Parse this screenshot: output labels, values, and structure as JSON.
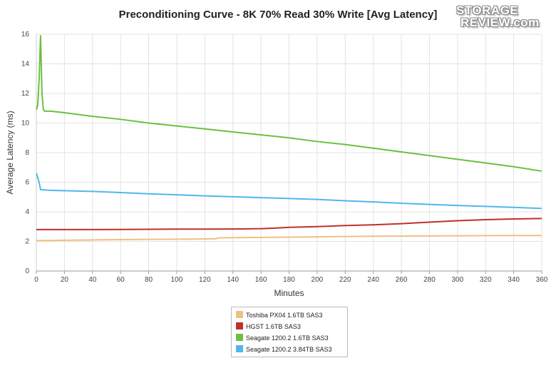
{
  "logo": {
    "line1": "STORAGE",
    "line2": "REVIEW.com"
  },
  "chart_data": {
    "type": "line",
    "title": "Preconditioning Curve - 8K 70% Read 30% Write [Avg Latency]",
    "xlabel": "Minutes",
    "ylabel": "Average Latency (ms)",
    "xlim": [
      0,
      360
    ],
    "ylim": [
      0,
      16
    ],
    "xticks": [
      "0",
      "20",
      "40",
      "60",
      "80",
      "100",
      "120",
      "140",
      "160",
      "180",
      "200",
      "220",
      "240",
      "260",
      "280",
      "300",
      "320",
      "340",
      "360"
    ],
    "yticks": [
      "0",
      "2",
      "4",
      "6",
      "8",
      "10",
      "12",
      "14",
      "16"
    ],
    "grid": true,
    "legend_position": "bottom",
    "series": [
      {
        "name": "Toshiba PX04 1.6TB SAS3",
        "color": "#f0c080",
        "points": [
          [
            0,
            2.05
          ],
          [
            20,
            2.08
          ],
          [
            40,
            2.1
          ],
          [
            60,
            2.12
          ],
          [
            80,
            2.14
          ],
          [
            100,
            2.15
          ],
          [
            120,
            2.17
          ],
          [
            128,
            2.18
          ],
          [
            130,
            2.24
          ],
          [
            140,
            2.25
          ],
          [
            160,
            2.27
          ],
          [
            180,
            2.29
          ],
          [
            200,
            2.31
          ],
          [
            220,
            2.33
          ],
          [
            240,
            2.35
          ],
          [
            260,
            2.36
          ],
          [
            280,
            2.37
          ],
          [
            300,
            2.38
          ],
          [
            320,
            2.39
          ],
          [
            340,
            2.4
          ],
          [
            360,
            2.4
          ]
        ]
      },
      {
        "name": "HGST 1.6TB SAS3",
        "color": "#c0302a",
        "points": [
          [
            0,
            2.8
          ],
          [
            20,
            2.8
          ],
          [
            40,
            2.8
          ],
          [
            60,
            2.81
          ],
          [
            80,
            2.82
          ],
          [
            100,
            2.83
          ],
          [
            120,
            2.83
          ],
          [
            140,
            2.84
          ],
          [
            160,
            2.86
          ],
          [
            170,
            2.9
          ],
          [
            180,
            2.95
          ],
          [
            200,
            3.0
          ],
          [
            220,
            3.07
          ],
          [
            240,
            3.12
          ],
          [
            260,
            3.2
          ],
          [
            280,
            3.3
          ],
          [
            300,
            3.4
          ],
          [
            320,
            3.47
          ],
          [
            340,
            3.52
          ],
          [
            360,
            3.55
          ]
        ]
      },
      {
        "name": "Seagate 1200.2 1.6TB SAS3",
        "color": "#6cc040",
        "points": [
          [
            0,
            10.9
          ],
          [
            1,
            11.2
          ],
          [
            2,
            13.0
          ],
          [
            3,
            15.9
          ],
          [
            4,
            12.0
          ],
          [
            5,
            10.9
          ],
          [
            6,
            10.8
          ],
          [
            10,
            10.8
          ],
          [
            20,
            10.7
          ],
          [
            40,
            10.45
          ],
          [
            60,
            10.25
          ],
          [
            80,
            10.0
          ],
          [
            100,
            9.8
          ],
          [
            120,
            9.6
          ],
          [
            140,
            9.4
          ],
          [
            160,
            9.2
          ],
          [
            180,
            9.0
          ],
          [
            200,
            8.75
          ],
          [
            220,
            8.55
          ],
          [
            240,
            8.3
          ],
          [
            260,
            8.05
          ],
          [
            280,
            7.8
          ],
          [
            300,
            7.55
          ],
          [
            320,
            7.3
          ],
          [
            340,
            7.05
          ],
          [
            360,
            6.75
          ]
        ]
      },
      {
        "name": "Seagate 1200.2 3.84TB SAS3",
        "color": "#4fb8ea",
        "points": [
          [
            0,
            6.6
          ],
          [
            2,
            6.0
          ],
          [
            3,
            5.5
          ],
          [
            10,
            5.45
          ],
          [
            20,
            5.43
          ],
          [
            40,
            5.38
          ],
          [
            60,
            5.3
          ],
          [
            80,
            5.22
          ],
          [
            100,
            5.15
          ],
          [
            120,
            5.08
          ],
          [
            140,
            5.02
          ],
          [
            160,
            4.96
          ],
          [
            180,
            4.9
          ],
          [
            200,
            4.84
          ],
          [
            220,
            4.75
          ],
          [
            240,
            4.67
          ],
          [
            260,
            4.58
          ],
          [
            280,
            4.5
          ],
          [
            300,
            4.43
          ],
          [
            320,
            4.37
          ],
          [
            340,
            4.3
          ],
          [
            360,
            4.23
          ]
        ]
      }
    ]
  }
}
